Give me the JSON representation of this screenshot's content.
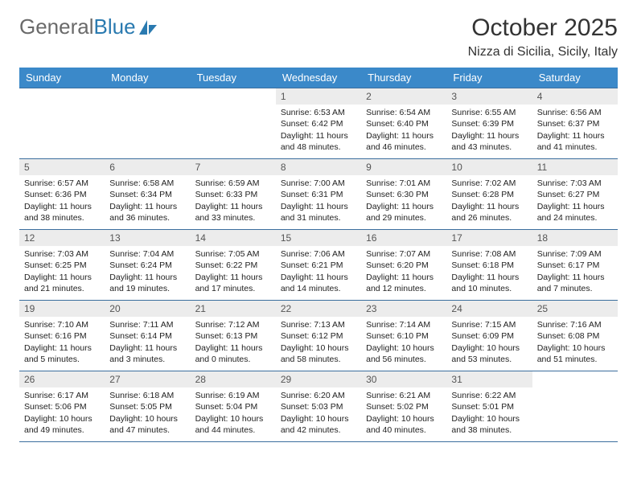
{
  "logo": {
    "text_gray": "General",
    "text_blue": "Blue"
  },
  "header": {
    "month_title": "October 2025",
    "location": "Nizza di Sicilia, Sicily, Italy"
  },
  "colors": {
    "header_bg": "#3b89c9",
    "header_fg": "#ffffff",
    "daynum_bg": "#ececec",
    "row_border": "#3b6e9e",
    "logo_gray": "#6a6a6a",
    "logo_blue": "#2a7ab0",
    "text": "#222222",
    "page_bg": "#ffffff"
  },
  "day_headers": [
    "Sunday",
    "Monday",
    "Tuesday",
    "Wednesday",
    "Thursday",
    "Friday",
    "Saturday"
  ],
  "weeks": [
    [
      null,
      null,
      null,
      {
        "n": "1",
        "sr": "6:53 AM",
        "ss": "6:42 PM",
        "dh": "11",
        "dm": "48"
      },
      {
        "n": "2",
        "sr": "6:54 AM",
        "ss": "6:40 PM",
        "dh": "11",
        "dm": "46"
      },
      {
        "n": "3",
        "sr": "6:55 AM",
        "ss": "6:39 PM",
        "dh": "11",
        "dm": "43"
      },
      {
        "n": "4",
        "sr": "6:56 AM",
        "ss": "6:37 PM",
        "dh": "11",
        "dm": "41"
      }
    ],
    [
      {
        "n": "5",
        "sr": "6:57 AM",
        "ss": "6:36 PM",
        "dh": "11",
        "dm": "38"
      },
      {
        "n": "6",
        "sr": "6:58 AM",
        "ss": "6:34 PM",
        "dh": "11",
        "dm": "36"
      },
      {
        "n": "7",
        "sr": "6:59 AM",
        "ss": "6:33 PM",
        "dh": "11",
        "dm": "33"
      },
      {
        "n": "8",
        "sr": "7:00 AM",
        "ss": "6:31 PM",
        "dh": "11",
        "dm": "31"
      },
      {
        "n": "9",
        "sr": "7:01 AM",
        "ss": "6:30 PM",
        "dh": "11",
        "dm": "29"
      },
      {
        "n": "10",
        "sr": "7:02 AM",
        "ss": "6:28 PM",
        "dh": "11",
        "dm": "26"
      },
      {
        "n": "11",
        "sr": "7:03 AM",
        "ss": "6:27 PM",
        "dh": "11",
        "dm": "24"
      }
    ],
    [
      {
        "n": "12",
        "sr": "7:03 AM",
        "ss": "6:25 PM",
        "dh": "11",
        "dm": "21"
      },
      {
        "n": "13",
        "sr": "7:04 AM",
        "ss": "6:24 PM",
        "dh": "11",
        "dm": "19"
      },
      {
        "n": "14",
        "sr": "7:05 AM",
        "ss": "6:22 PM",
        "dh": "11",
        "dm": "17"
      },
      {
        "n": "15",
        "sr": "7:06 AM",
        "ss": "6:21 PM",
        "dh": "11",
        "dm": "14"
      },
      {
        "n": "16",
        "sr": "7:07 AM",
        "ss": "6:20 PM",
        "dh": "11",
        "dm": "12"
      },
      {
        "n": "17",
        "sr": "7:08 AM",
        "ss": "6:18 PM",
        "dh": "11",
        "dm": "10"
      },
      {
        "n": "18",
        "sr": "7:09 AM",
        "ss": "6:17 PM",
        "dh": "11",
        "dm": "7"
      }
    ],
    [
      {
        "n": "19",
        "sr": "7:10 AM",
        "ss": "6:16 PM",
        "dh": "11",
        "dm": "5"
      },
      {
        "n": "20",
        "sr": "7:11 AM",
        "ss": "6:14 PM",
        "dh": "11",
        "dm": "3"
      },
      {
        "n": "21",
        "sr": "7:12 AM",
        "ss": "6:13 PM",
        "dh": "11",
        "dm": "0"
      },
      {
        "n": "22",
        "sr": "7:13 AM",
        "ss": "6:12 PM",
        "dh": "10",
        "dm": "58"
      },
      {
        "n": "23",
        "sr": "7:14 AM",
        "ss": "6:10 PM",
        "dh": "10",
        "dm": "56"
      },
      {
        "n": "24",
        "sr": "7:15 AM",
        "ss": "6:09 PM",
        "dh": "10",
        "dm": "53"
      },
      {
        "n": "25",
        "sr": "7:16 AM",
        "ss": "6:08 PM",
        "dh": "10",
        "dm": "51"
      }
    ],
    [
      {
        "n": "26",
        "sr": "6:17 AM",
        "ss": "5:06 PM",
        "dh": "10",
        "dm": "49"
      },
      {
        "n": "27",
        "sr": "6:18 AM",
        "ss": "5:05 PM",
        "dh": "10",
        "dm": "47"
      },
      {
        "n": "28",
        "sr": "6:19 AM",
        "ss": "5:04 PM",
        "dh": "10",
        "dm": "44"
      },
      {
        "n": "29",
        "sr": "6:20 AM",
        "ss": "5:03 PM",
        "dh": "10",
        "dm": "42"
      },
      {
        "n": "30",
        "sr": "6:21 AM",
        "ss": "5:02 PM",
        "dh": "10",
        "dm": "40"
      },
      {
        "n": "31",
        "sr": "6:22 AM",
        "ss": "5:01 PM",
        "dh": "10",
        "dm": "38"
      },
      null
    ]
  ],
  "labels": {
    "sunrise_prefix": "Sunrise: ",
    "sunset_prefix": "Sunset: ",
    "daylight_prefix": "Daylight: ",
    "hours_word": " hours",
    "and_word": "and ",
    "minutes_word": " minutes."
  }
}
